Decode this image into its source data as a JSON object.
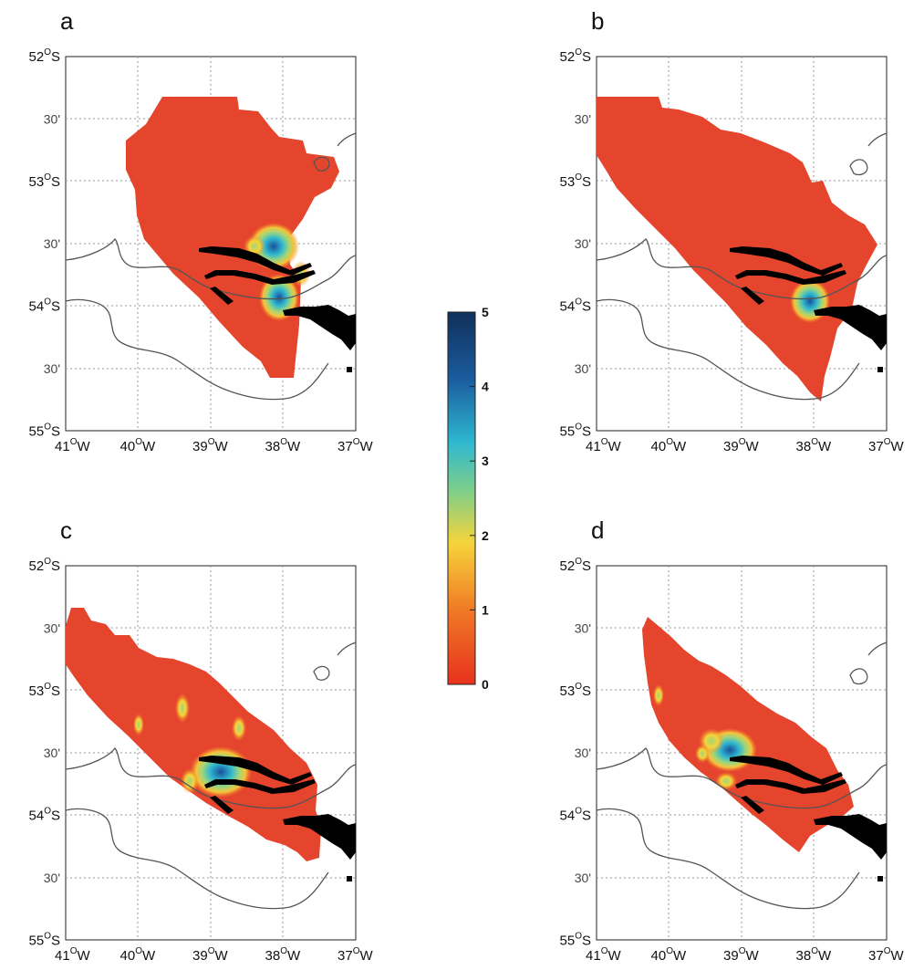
{
  "panels": [
    {
      "letter": "a"
    },
    {
      "letter": "b"
    },
    {
      "letter": "c"
    },
    {
      "letter": "d"
    }
  ],
  "axes": {
    "lat_labels": [
      {
        "deg": "52",
        "sup": "O",
        "hemi": "S"
      },
      {
        "deg": "30'",
        "sup": "",
        "hemi": ""
      },
      {
        "deg": "53",
        "sup": "O",
        "hemi": "S"
      },
      {
        "deg": "30'",
        "sup": "",
        "hemi": ""
      },
      {
        "deg": "54",
        "sup": "O",
        "hemi": "S"
      },
      {
        "deg": "30'",
        "sup": "",
        "hemi": ""
      },
      {
        "deg": "55",
        "sup": "O",
        "hemi": "S"
      }
    ],
    "lon_labels": [
      {
        "deg": "41",
        "sup": "O",
        "hemi": "W"
      },
      {
        "deg": "40",
        "sup": "O",
        "hemi": "W"
      },
      {
        "deg": "39",
        "sup": "O",
        "hemi": "W"
      },
      {
        "deg": "38",
        "sup": "O",
        "hemi": "W"
      },
      {
        "deg": "37",
        "sup": "O",
        "hemi": "W"
      }
    ]
  },
  "colorbar": {
    "ticks": [
      "5",
      "4",
      "3",
      "2",
      "1",
      "0"
    ],
    "min": 0,
    "max": 5,
    "colors": [
      "#e8321e",
      "#f07a25",
      "#f6d43a",
      "#7ecf8a",
      "#2fb8d0",
      "#1a5c9e",
      "#10305a"
    ]
  },
  "colors": {
    "fill_red": "#e5452d",
    "coast": "#555555",
    "land": "#000000"
  }
}
